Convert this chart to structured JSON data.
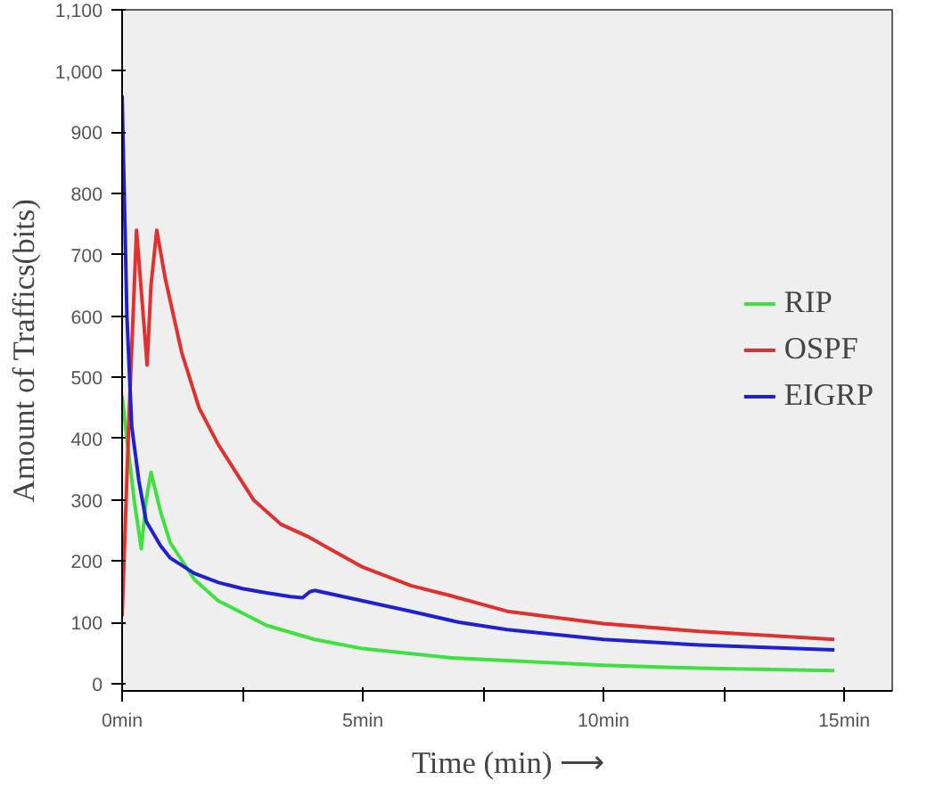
{
  "chart_data": {
    "type": "line",
    "xlabel": "Time (min) ⟶",
    "ylabel": "Amount of Traffics(bits)",
    "xlim": [
      0,
      16
    ],
    "ylim": [
      -12,
      1100
    ],
    "xticks": [
      {
        "value": 0,
        "label": "0min"
      },
      {
        "value": 2.5,
        "label": null
      },
      {
        "value": 5,
        "label": "5min"
      },
      {
        "value": 7.5,
        "label": null
      },
      {
        "value": 10,
        "label": "10min"
      },
      {
        "value": 12.5,
        "label": null
      },
      {
        "value": 15,
        "label": "15min"
      }
    ],
    "yticks": [
      {
        "value": 0,
        "label": "0"
      },
      {
        "value": 100,
        "label": "100"
      },
      {
        "value": 200,
        "label": "200"
      },
      {
        "value": 300,
        "label": "300"
      },
      {
        "value": 400,
        "label": "400"
      },
      {
        "value": 500,
        "label": "500"
      },
      {
        "value": 600,
        "label": "600"
      },
      {
        "value": 700,
        "label": "700"
      },
      {
        "value": 800,
        "label": "800"
      },
      {
        "value": 900,
        "label": "900"
      },
      {
        "value": 1000,
        "label": "1,000"
      },
      {
        "value": 1100,
        "label": "1,100"
      }
    ],
    "grid": false,
    "legend": "right",
    "series": [
      {
        "name": "RIP",
        "color": "#40e040",
        "x": [
          0,
          0.1,
          0.25,
          0.4,
          0.5,
          0.6,
          0.8,
          1,
          1.5,
          2,
          3,
          4,
          5,
          6.85,
          10,
          12,
          14.8
        ],
        "values": [
          470,
          400,
          300,
          220,
          300,
          345,
          280,
          230,
          170,
          135,
          95,
          72,
          57,
          42,
          30,
          25,
          21
        ]
      },
      {
        "name": "OSPF",
        "color": "#e03030",
        "x": [
          0,
          0.15,
          0.3,
          0.4,
          0.52,
          0.6,
          0.72,
          0.9,
          1.24,
          1.6,
          2,
          2.73,
          3.3,
          3.86,
          4.2,
          5,
          6,
          6.85,
          8,
          10,
          12,
          14.8
        ],
        "values": [
          110,
          450,
          740,
          640,
          520,
          650,
          740,
          660,
          540,
          450,
          390,
          300,
          260,
          240,
          225,
          190,
          160,
          143,
          118,
          98,
          85,
          72
        ]
      },
      {
        "name": "EIGRP",
        "color": "#2020d0",
        "x": [
          0,
          0.1,
          0.2,
          0.35,
          0.5,
          0.8,
          1,
          1.5,
          2,
          2.5,
          3,
          3.5,
          3.75,
          3.9,
          4,
          5,
          6,
          7,
          8,
          10,
          12,
          14.8
        ],
        "values": [
          960,
          600,
          420,
          330,
          265,
          225,
          205,
          180,
          165,
          155,
          148,
          142,
          140,
          150,
          152,
          135,
          118,
          100,
          88,
          72,
          63,
          55
        ]
      }
    ]
  }
}
